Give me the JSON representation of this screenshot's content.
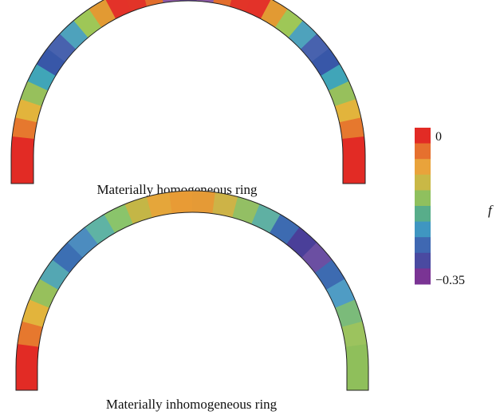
{
  "figure": {
    "rings": [
      {
        "caption": "Materially homogeneous ring",
        "segment_colors": [
          "#e22b25",
          "#e6782e",
          "#e2b43c",
          "#97c05c",
          "#40a5b8",
          "#3857a8",
          "#4862ae",
          "#4ea2bc",
          "#9ec757",
          "#e29a33",
          "#e33229",
          "#e23428",
          "#e26e2d",
          "#8d5aa6",
          "#5f3b97",
          "#8d5aa6",
          "#e26e2d",
          "#e23428",
          "#e33229",
          "#e29a33",
          "#9ec757",
          "#4ea2bc",
          "#4862ae",
          "#3857a8",
          "#40a5b8",
          "#97c05c",
          "#e2b43c",
          "#e6782e",
          "#e22b25"
        ]
      },
      {
        "caption": "Materially inhomogeneous ring",
        "segment_colors": [
          "#e22b25",
          "#e6782e",
          "#e2b43c",
          "#97c05c",
          "#54a7b3",
          "#3c6fb3",
          "#4c8cbf",
          "#5fb3a4",
          "#8ac46b",
          "#c4b646",
          "#e5a63a",
          "#e89b35",
          "#e59a36",
          "#cdb347",
          "#93bf64",
          "#5fb0a3",
          "#3d6bb1",
          "#4a3f99",
          "#6b4fa2",
          "#3d6bb1",
          "#4f9cc4",
          "#7bbb7a",
          "#9cc35e",
          "#8fbf5b"
        ]
      }
    ],
    "colorbar": {
      "colors": [
        "#e22b25",
        "#e6702e",
        "#e9a33b",
        "#c9b846",
        "#8fc05e",
        "#58ad8a",
        "#3f96c1",
        "#3f68b2",
        "#4a4aa1",
        "#7a3494"
      ],
      "max_label": "0",
      "min_label": "−0.35",
      "axis_label": "f"
    }
  }
}
